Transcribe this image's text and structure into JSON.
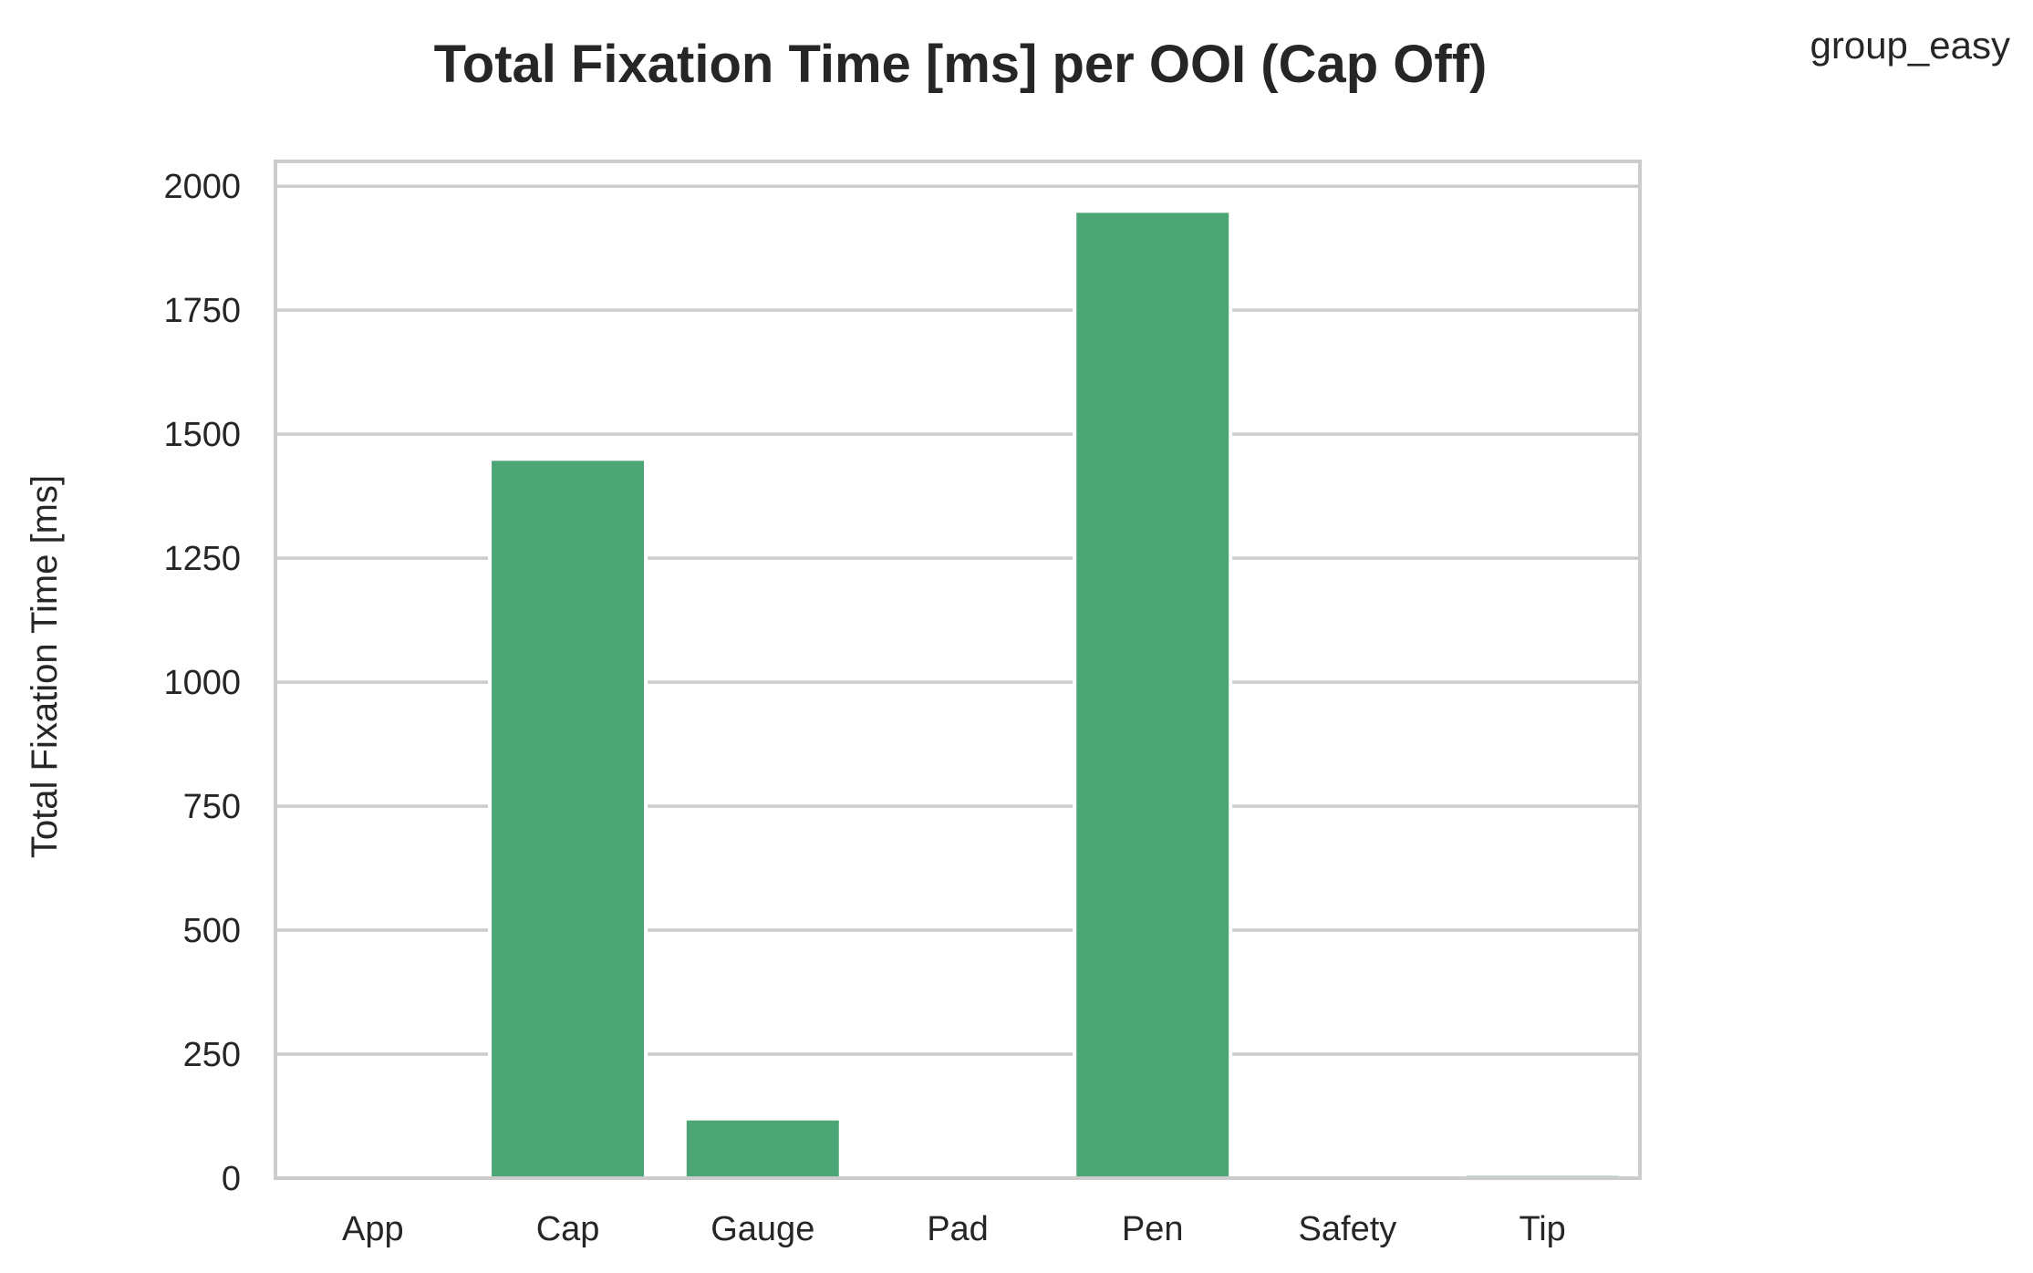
{
  "chart_data": {
    "type": "bar",
    "title": "Total Fixation Time [ms] per OOI (Cap Off)",
    "xlabel": "",
    "ylabel": "Total Fixation Time [ms]",
    "categories": [
      "App",
      "Cap",
      "Gauge",
      "Pad",
      "Pen",
      "Safety",
      "Tip"
    ],
    "series": [
      {
        "name": "group_easy",
        "values": [
          0,
          1450,
          120,
          0,
          1950,
          0,
          8
        ],
        "color": "#4ca574"
      }
    ],
    "ylim": [
      0,
      2050
    ],
    "yticks": [
      0,
      250,
      500,
      750,
      1000,
      1250,
      1500,
      1750,
      2000
    ],
    "ytick_labels": [
      "0",
      "250",
      "500",
      "750",
      "1000",
      "1250",
      "1500",
      "1750",
      "2000"
    ],
    "grid": true,
    "grid_axis": "y",
    "legend_placement": "top-right",
    "legend_label": "group_easy"
  },
  "colors": {
    "bar": "#4ca574",
    "grid": "#cccccc",
    "text": "#262626",
    "background": "#ffffff"
  }
}
